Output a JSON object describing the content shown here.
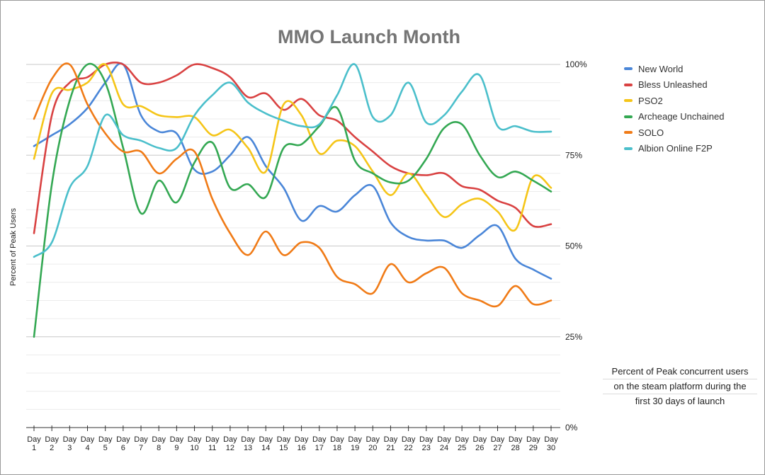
{
  "chart_data": {
    "type": "line",
    "title": "MMO Launch Month",
    "xlabel": "",
    "ylabel": "Percent of Peak Users",
    "ylim": [
      0,
      100
    ],
    "y_ticks": [
      "0%",
      "25%",
      "50%",
      "75%",
      "100%"
    ],
    "y_tick_values": [
      0,
      25,
      50,
      75,
      100
    ],
    "categories": [
      "Day 1",
      "Day 2",
      "Day 3",
      "Day 4",
      "Day 5",
      "Day 6",
      "Day 7",
      "Day 8",
      "Day 9",
      "Day 10",
      "Day 11",
      "Day 12",
      "Day 13",
      "Day 14",
      "Day 15",
      "Day 16",
      "Day 17",
      "Day 18",
      "Day 19",
      "Day 20",
      "Day 21",
      "Day 22",
      "Day 23",
      "Day 24",
      "Day 25",
      "Day 26",
      "Day 27",
      "Day 28",
      "Day 29",
      "Day 30"
    ],
    "legend_position": "right",
    "note": [
      "Percent of Peak concurrent users",
      "on the steam platform during the",
      "first 30 days of launch"
    ],
    "series": [
      {
        "name": "New World",
        "color": "#4a86d8",
        "values": [
          77.5,
          80.5,
          83.5,
          88,
          95,
          100,
          86,
          81.5,
          81,
          71,
          70.5,
          75,
          80,
          72,
          66,
          57,
          61,
          59.5,
          64,
          66.5,
          56.5,
          52.5,
          51.5,
          51.5,
          49.5,
          53,
          55.5,
          46.5,
          43.5,
          41
        ]
      },
      {
        "name": "Bless Unleashed",
        "color": "#d94242",
        "values": [
          53.5,
          86,
          95,
          96.5,
          100,
          100,
          95,
          95,
          97,
          100,
          99,
          96.5,
          91,
          92,
          87.5,
          90.5,
          86,
          84.5,
          80,
          76,
          72,
          70,
          69.5,
          70,
          66.5,
          65.5,
          62.5,
          60.5,
          55.5,
          56
        ]
      },
      {
        "name": "PSO2",
        "color": "#f5c518",
        "values": [
          74,
          92,
          93,
          95,
          100,
          89,
          88.5,
          86,
          85.5,
          85.5,
          80.5,
          82,
          77,
          70.5,
          89,
          86,
          75.5,
          79,
          77.5,
          70.5,
          64,
          70,
          64,
          58,
          61.5,
          63,
          59.5,
          54.5,
          69,
          66
        ]
      },
      {
        "name": "Archeage Unchained",
        "color": "#34a853",
        "values": [
          25,
          67,
          90,
          100,
          95,
          77,
          59,
          68,
          62,
          73,
          78.5,
          66,
          67,
          63.5,
          77,
          78,
          83,
          88,
          73.5,
          70,
          67.5,
          68,
          74,
          82.5,
          83.5,
          75,
          69,
          70.5,
          68,
          65
        ]
      },
      {
        "name": "SOLO",
        "color": "#f07b17",
        "values": [
          85,
          96,
          100,
          89,
          81,
          76,
          76,
          70,
          74,
          76,
          63,
          53.5,
          47.5,
          54,
          47.5,
          51,
          49.5,
          41.5,
          39.5,
          37,
          45,
          40,
          42.5,
          44,
          37,
          35,
          33.5,
          39,
          34,
          35
        ]
      },
      {
        "name": "Albion Online F2P",
        "color": "#4bbfcb",
        "values": [
          47,
          51,
          66,
          72,
          86,
          80.5,
          79,
          77,
          77,
          86,
          91.5,
          95,
          89.5,
          86.5,
          84.5,
          83,
          83.5,
          91.5,
          100,
          85.5,
          86,
          95,
          84,
          86,
          92.5,
          97,
          83,
          83,
          81.5,
          81.5
        ]
      }
    ]
  }
}
